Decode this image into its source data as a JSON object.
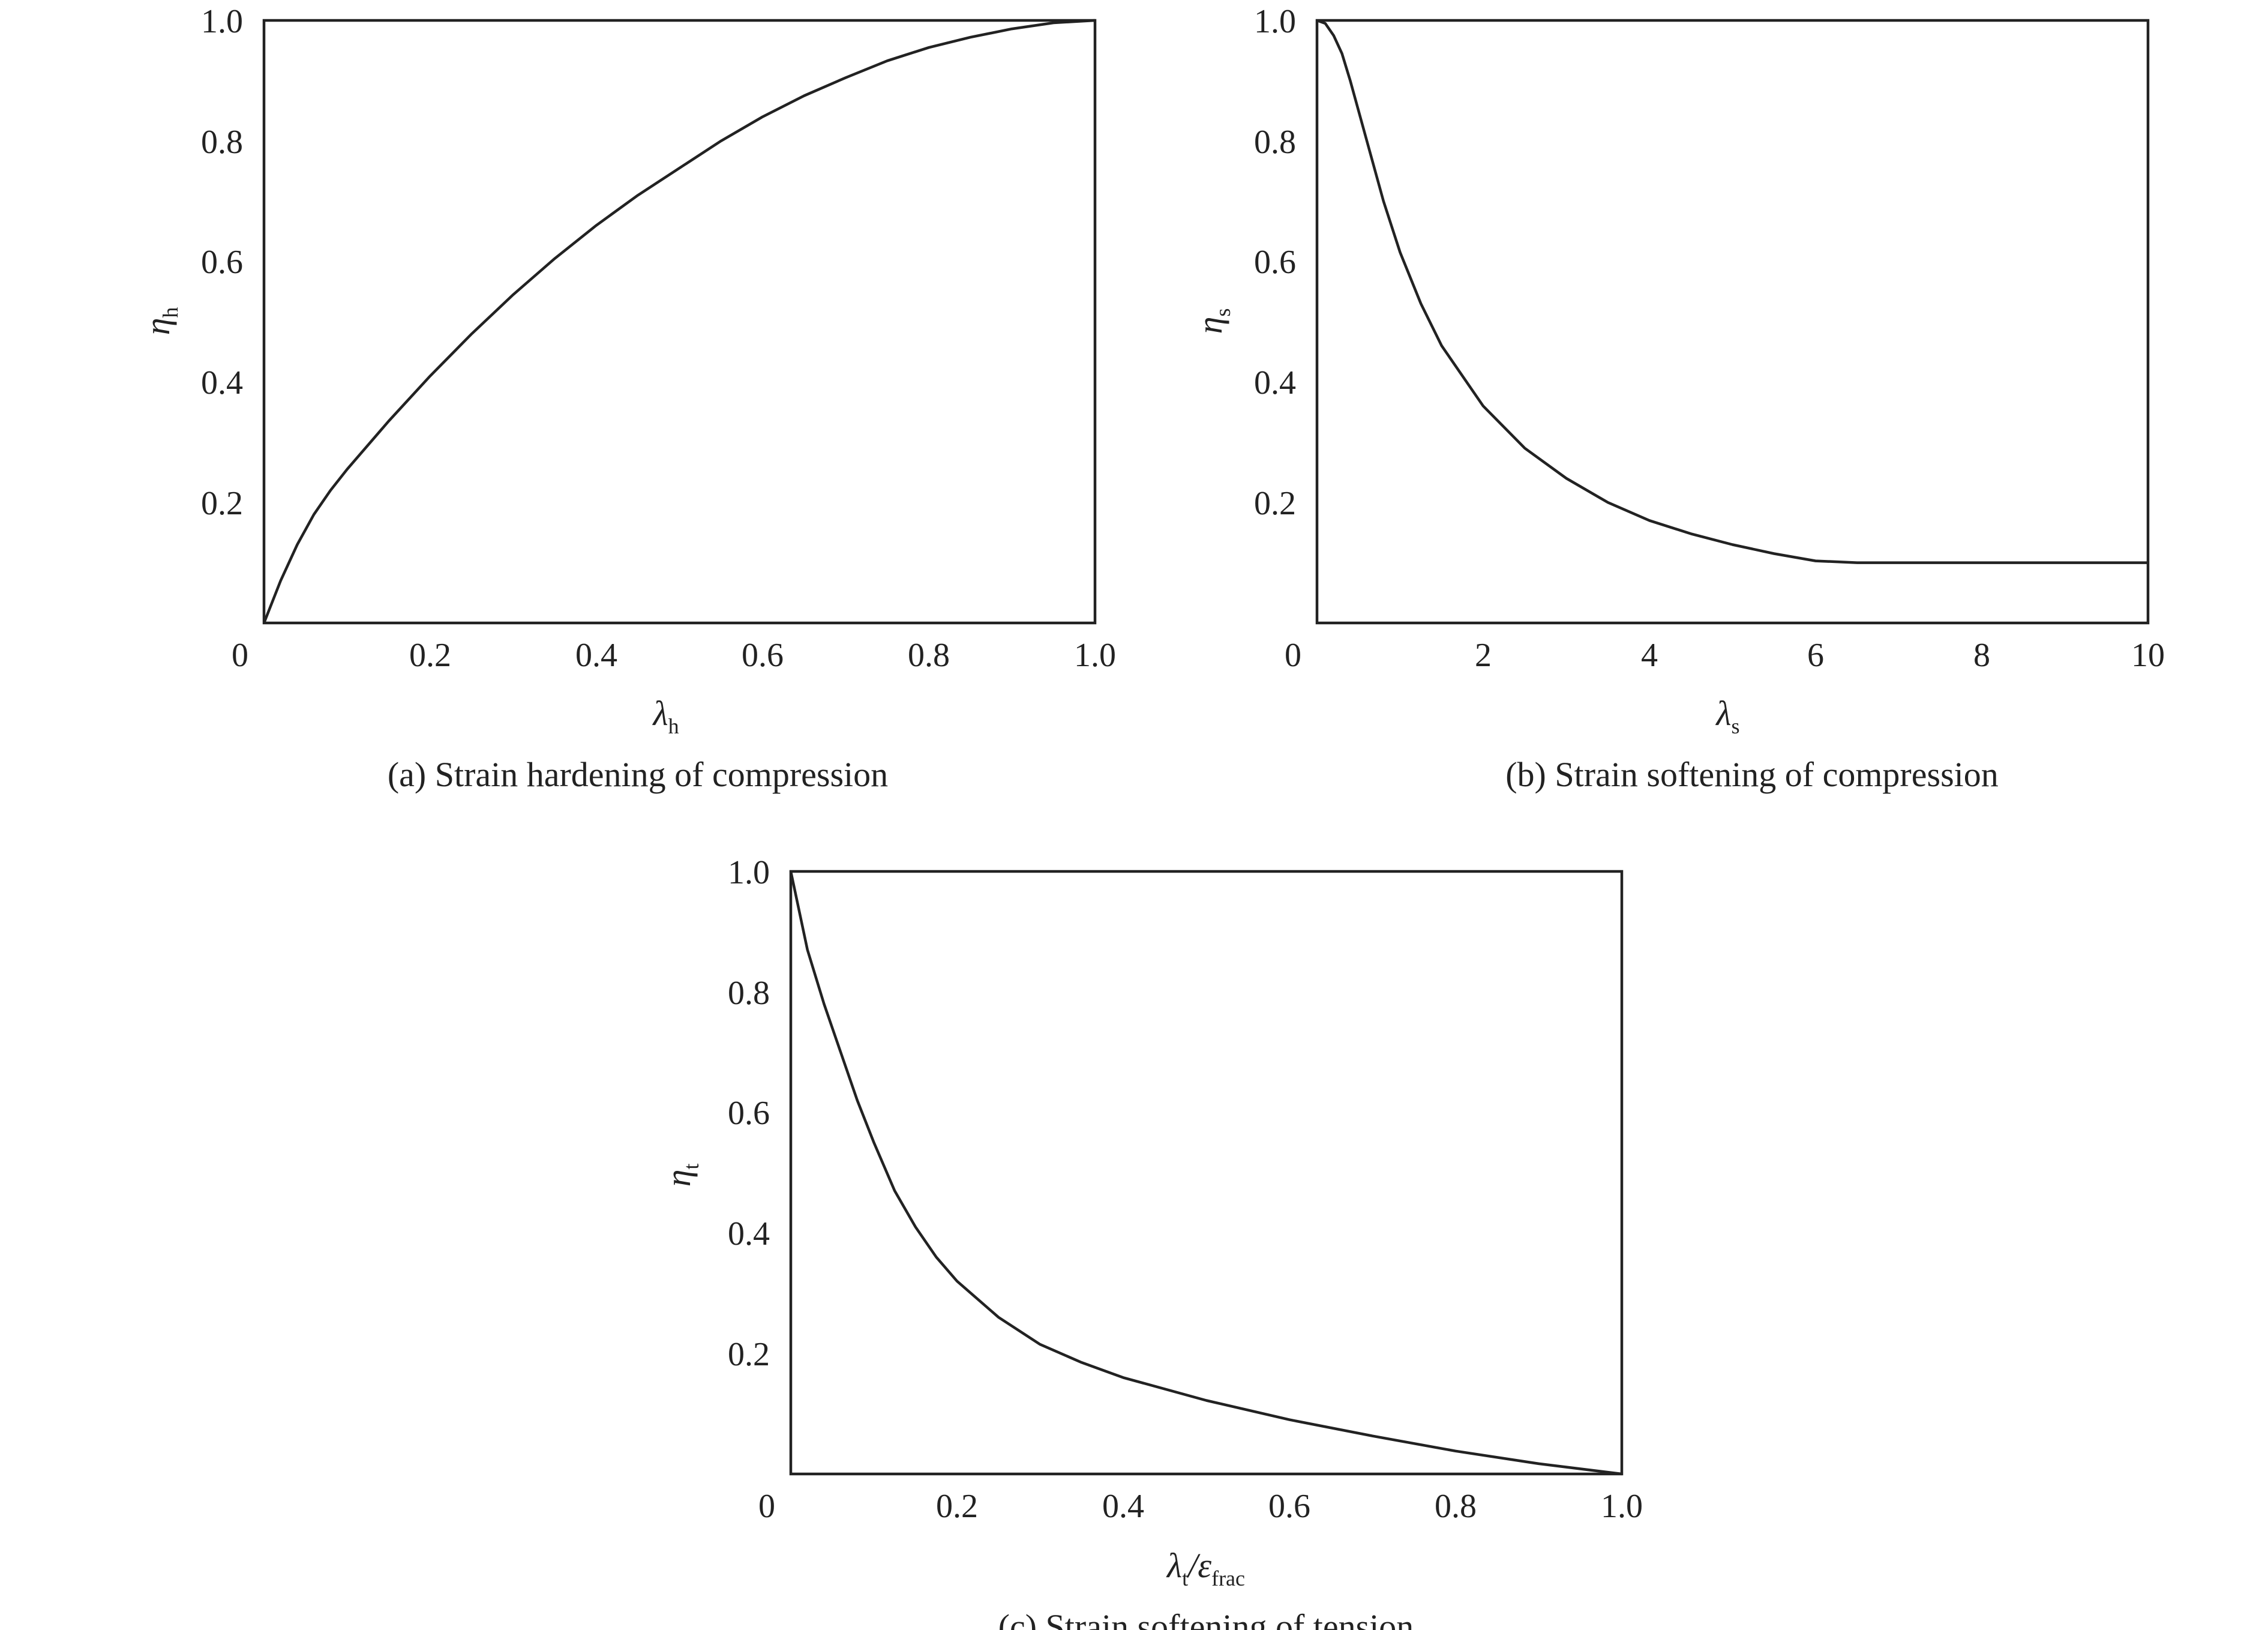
{
  "chart_data": [
    {
      "type": "line",
      "caption": "(a) Strain hardening of compression",
      "xlabel": "λh",
      "ylabel": "ηh",
      "xlim": [
        0,
        1.0
      ],
      "ylim": [
        0,
        1.0
      ],
      "xticks": [
        "0",
        "0.2",
        "0.4",
        "0.6",
        "0.8",
        "1.0"
      ],
      "yticks": [
        "0.2",
        "0.4",
        "0.6",
        "0.8",
        "1.0"
      ],
      "series": [
        {
          "x": [
            0,
            0.02,
            0.04,
            0.06,
            0.08,
            0.1,
            0.15,
            0.2,
            0.25,
            0.3,
            0.35,
            0.4,
            0.45,
            0.5,
            0.55,
            0.6,
            0.65,
            0.7,
            0.75,
            0.8,
            0.85,
            0.9,
            0.95,
            1.0
          ],
          "y": [
            0,
            0.07,
            0.13,
            0.18,
            0.22,
            0.255,
            0.335,
            0.41,
            0.48,
            0.545,
            0.605,
            0.66,
            0.71,
            0.755,
            0.8,
            0.84,
            0.875,
            0.905,
            0.933,
            0.955,
            0.972,
            0.986,
            0.996,
            1.0
          ]
        }
      ]
    },
    {
      "type": "line",
      "caption": "(b) Strain softening of compression",
      "xlabel": "λs",
      "ylabel": "ηs",
      "xlim": [
        0,
        10
      ],
      "ylim": [
        0,
        1.0
      ],
      "xticks": [
        "0",
        "2",
        "4",
        "6",
        "8",
        "10"
      ],
      "yticks": [
        "0.2",
        "0.4",
        "0.6",
        "0.8",
        "1.0"
      ],
      "series": [
        {
          "x": [
            0,
            0.1,
            0.2,
            0.3,
            0.4,
            0.6,
            0.8,
            1.0,
            1.25,
            1.5,
            2.0,
            2.5,
            3.0,
            3.5,
            4.0,
            4.5,
            5.0,
            5.5,
            6.0,
            6.5,
            7.0,
            8.0,
            9.0,
            10.0
          ],
          "y": [
            1.0,
            0.995,
            0.975,
            0.945,
            0.9,
            0.8,
            0.7,
            0.615,
            0.53,
            0.46,
            0.36,
            0.29,
            0.24,
            0.2,
            0.17,
            0.148,
            0.13,
            0.115,
            0.103,
            0.1,
            0.1,
            0.1,
            0.1,
            0.1
          ]
        }
      ]
    },
    {
      "type": "line",
      "caption": "(c) Strain softening of tension",
      "xlabel": "λt/εfrac",
      "ylabel": "ηt",
      "xlim": [
        0,
        1.0
      ],
      "ylim": [
        0,
        1.0
      ],
      "xticks": [
        "0",
        "0.2",
        "0.4",
        "0.6",
        "0.8",
        "1.0"
      ],
      "yticks": [
        "0.2",
        "0.4",
        "0.6",
        "0.8",
        "1.0"
      ],
      "series": [
        {
          "x": [
            0,
            0.02,
            0.04,
            0.06,
            0.08,
            0.1,
            0.125,
            0.15,
            0.175,
            0.2,
            0.25,
            0.3,
            0.35,
            0.4,
            0.5,
            0.6,
            0.7,
            0.8,
            0.9,
            1.0
          ],
          "y": [
            1.0,
            0.87,
            0.78,
            0.7,
            0.62,
            0.55,
            0.47,
            0.41,
            0.36,
            0.32,
            0.26,
            0.215,
            0.185,
            0.16,
            0.122,
            0.09,
            0.063,
            0.038,
            0.017,
            0.0
          ]
        }
      ]
    }
  ]
}
